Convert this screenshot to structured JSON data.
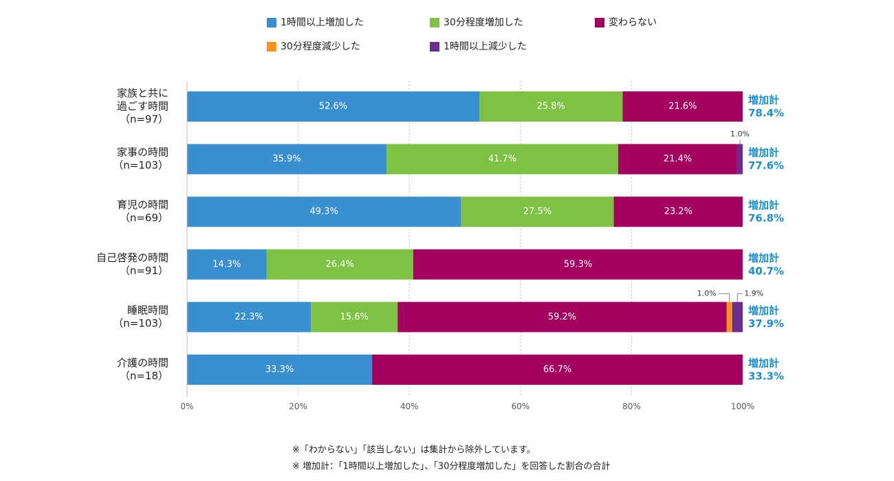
{
  "chart_data": {
    "type": "stacked-bar-horizontal",
    "categories": [
      [
        "家族と共に",
        "過ごす時間",
        "（n=97）"
      ],
      [
        "家事の時間",
        "（n=103）"
      ],
      [
        "育児の時間",
        "（n=69）"
      ],
      [
        "自己啓発の時間",
        "（n=91）"
      ],
      [
        "睡眠時間",
        "（n=103）"
      ],
      [
        "介護の時間",
        "（n=18）"
      ]
    ],
    "series": [
      {
        "name": "1時間以上増加した",
        "color": "#3a8fd0",
        "values": [
          52.6,
          35.9,
          49.3,
          14.3,
          22.3,
          33.3
        ],
        "value_labels": [
          "52.6%",
          "35.9%",
          "49.3%",
          "14.3%",
          "22.3%",
          "33.3%"
        ]
      },
      {
        "name": "30分程度増加した",
        "color": "#7dc242",
        "values": [
          25.8,
          41.7,
          27.5,
          26.4,
          15.6,
          0
        ],
        "value_labels": [
          "25.8%",
          "41.7%",
          "27.5%",
          "26.4%",
          "15.6%",
          null
        ]
      },
      {
        "name": "変わらない",
        "color": "#a3005f",
        "values": [
          21.6,
          21.4,
          23.2,
          59.3,
          59.2,
          66.7
        ],
        "value_labels": [
          "21.6%",
          "21.4%",
          "23.2%",
          "59.3%",
          "59.2%",
          "66.7%"
        ]
      },
      {
        "name": "30分程度減少した",
        "color": "#f7931e",
        "values": [
          0,
          0,
          0,
          0,
          1.0,
          0
        ],
        "value_labels": [
          null,
          null,
          null,
          null,
          "1.0%",
          null
        ]
      },
      {
        "name": "1時間以上減少した",
        "color": "#6b2d8f",
        "values": [
          0,
          1.0,
          0,
          0,
          1.9,
          0
        ],
        "value_labels": [
          null,
          "1.0%",
          null,
          null,
          "1.9%",
          null
        ]
      }
    ],
    "totals": {
      "label": "増加計",
      "values": [
        78.4,
        77.6,
        76.8,
        40.7,
        37.9,
        33.3
      ],
      "value_labels": [
        "78.4%",
        "77.6%",
        "76.8%",
        "40.7%",
        "37.9%",
        "33.3%"
      ]
    },
    "xlim": [
      0,
      100
    ],
    "xticks": [
      {
        "value": 0,
        "label": "0%"
      },
      {
        "value": 20,
        "label": "20%"
      },
      {
        "value": 40,
        "label": "40%"
      },
      {
        "value": 60,
        "label": "60%"
      },
      {
        "value": 80,
        "label": "80%"
      },
      {
        "value": 100,
        "label": "100%"
      }
    ],
    "grid": true,
    "notes": [
      "※「わからない」「該当しない」は集計から除外しています。",
      "※ 増加計：「1時間以上増加した」、「30分程度増加した」を回答した割合の合計"
    ]
  }
}
